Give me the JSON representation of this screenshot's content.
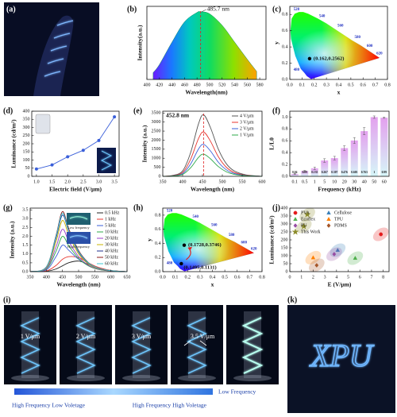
{
  "chart_data": [
    {
      "panel": "(b)",
      "type": "area",
      "x": [
        410,
        420,
        440,
        460,
        480,
        485.7,
        500,
        520,
        540,
        560,
        575
      ],
      "values": [
        0.1,
        0.22,
        0.55,
        0.85,
        0.99,
        1,
        0.97,
        0.8,
        0.55,
        0.3,
        0.12
      ],
      "xlim": [
        400,
        590
      ],
      "ylim": [
        0,
        1.08
      ],
      "xticks": [
        400,
        420,
        440,
        460,
        480,
        500,
        520,
        540,
        560,
        580
      ],
      "xlabel": "Wavelength(nm)",
      "ylabel": "Intensity(a.u.)",
      "peak": 485.7,
      "annotation": "485.7 nm"
    },
    {
      "panel": "(c)",
      "type": "cie",
      "xlim": [
        0,
        0.8
      ],
      "ylim": [
        0,
        0.9
      ],
      "xticks": [
        {
          "value": 0,
          "label": "0.0"
        },
        0.1,
        0.2,
        0.3,
        0.4,
        0.5,
        0.6,
        0.7,
        0.8
      ],
      "yticks": [
        {
          "value": 0,
          "label": "0.0"
        },
        0.2,
        0.4,
        0.6,
        0.8
      ],
      "xlabel": "x",
      "ylabel": "y",
      "locus_labels": [
        520,
        540,
        560,
        580,
        600,
        620,
        480
      ],
      "points": [
        {
          "x": 0.162,
          "y": 0.2562,
          "label": "(0.162,0.2562)"
        }
      ]
    },
    {
      "panel": "(d)",
      "type": "line",
      "markers": true,
      "x": [
        1,
        1.5,
        2,
        2.5,
        3,
        3.5
      ],
      "values": [
        45,
        70,
        120,
        160,
        220,
        365
      ],
      "color": "#3a5fd9",
      "xlim": [
        0.85,
        3.65
      ],
      "ylim": [
        0,
        400
      ],
      "xticks": [
        {
          "value": 1,
          "label": "1.0"
        },
        1.5,
        {
          "value": 2,
          "label": "2.0"
        },
        2.5,
        {
          "value": 3,
          "label": "3.0"
        },
        3.5
      ],
      "yticks": [
        0,
        50,
        100,
        150,
        200,
        250,
        300,
        350,
        400
      ],
      "xlabel": "Electric field (V/μm)",
      "ylabel": "Luminance (cd/m²)"
    },
    {
      "panel": "(e)",
      "type": "line",
      "legend": "upper right",
      "x": [
        350,
        375,
        400,
        420,
        440,
        452.8,
        470,
        490,
        510,
        530,
        560,
        600
      ],
      "series": [
        {
          "name": "4 V/μm",
          "color": "#555555",
          "values": [
            0,
            50,
            300,
            1300,
            2900,
            3400,
            2700,
            1500,
            700,
            300,
            80,
            0
          ]
        },
        {
          "name": "3 V/μm",
          "color": "#e8352e",
          "values": [
            0,
            36,
            216,
            936,
            2090,
            2450,
            1945,
            1080,
            505,
            216,
            58,
            0
          ]
        },
        {
          "name": "2 V/μm",
          "color": "#3a5fd9",
          "values": [
            0,
            26,
            156,
            676,
            1510,
            1770,
            1405,
            780,
            365,
            156,
            42,
            0
          ]
        },
        {
          "name": "1 V/μm",
          "color": "#2ea84a",
          "values": [
            0,
            18,
            108,
            468,
            1045,
            1225,
            972,
            540,
            252,
            108,
            29,
            0
          ]
        }
      ],
      "xlim": [
        350,
        600
      ],
      "ylim": [
        0,
        3600
      ],
      "xticks": [
        350,
        400,
        450,
        500,
        550,
        600
      ],
      "yticks": [
        0,
        500,
        1000,
        1500,
        2000,
        2500,
        3000,
        3500
      ],
      "xlabel": "Wavelength (nm)",
      "ylabel": "Intensity (a.u.)",
      "peak": 452.8,
      "annotation": "452.8 nm"
    },
    {
      "panel": "(f)",
      "type": "bar",
      "categories": [
        "0.1",
        "0.5",
        "1",
        "5",
        "10",
        "20",
        "30",
        "40",
        "50",
        "60"
      ],
      "values": [
        0.04,
        0.09,
        0.135,
        0.267,
        0.307,
        0.476,
        0.605,
        0.763,
        1,
        0.99
      ],
      "errors": [
        0.01,
        0.01,
        0.02,
        0.03,
        0.03,
        0.04,
        0.05,
        0.06,
        0.02,
        0.01
      ],
      "colors": [
        "#e3a0ee",
        "#d6f6f8"
      ],
      "ylim": [
        0,
        1.1
      ],
      "yticks": [
        {
          "value": 0,
          "label": "0.0"
        },
        0.2,
        0.4,
        0.6,
        0.8,
        {
          "value": 1,
          "label": "1.0"
        }
      ],
      "xlabel": "Frequency (kHz)",
      "ylabel": "L/L0"
    },
    {
      "panel": "(g)",
      "type": "line",
      "legend": "upper right",
      "x": [
        350,
        400,
        430,
        450,
        470,
        500,
        530,
        560,
        600,
        650
      ],
      "series": [
        {
          "name": "0.5 kHz",
          "color": "#222222",
          "values": [
            0,
            0.02,
            0.15,
            0.33,
            0.51,
            0.6,
            0.42,
            0.21,
            0.06,
            0
          ]
        },
        {
          "name": "1 kHz",
          "color": "#e8352e",
          "values": [
            0,
            0.04,
            0.35,
            0.7,
            0.85,
            0.8,
            0.5,
            0.25,
            0.07,
            0
          ]
        },
        {
          "name": "5 kHz",
          "color": "#3a5fd9",
          "values": [
            0,
            0.1,
            0.85,
            1.5,
            1.2,
            0.7,
            0.35,
            0.14,
            0.04,
            0
          ]
        },
        {
          "name": "10 kHz",
          "color": "#2ea84a",
          "values": [
            0,
            0.15,
            1.15,
            2,
            1.45,
            0.75,
            0.33,
            0.13,
            0.04,
            0
          ]
        },
        {
          "name": "20 kHz",
          "color": "#9b3fc7",
          "values": [
            0,
            0.18,
            1.4,
            2.4,
            1.7,
            0.85,
            0.37,
            0.15,
            0.04,
            0
          ]
        },
        {
          "name": "30 kHz",
          "color": "#c9b400",
          "values": [
            0,
            0.22,
            1.7,
            2.9,
            2.05,
            1,
            0.44,
            0.17,
            0.05,
            0
          ]
        },
        {
          "name": "40 kHz",
          "color": "#1f2f8f",
          "values": [
            0,
            0.25,
            1.9,
            3.2,
            2.25,
            1.1,
            0.48,
            0.19,
            0.05,
            0
          ]
        },
        {
          "name": "50 kHz",
          "color": "#8b1a1a",
          "values": [
            0,
            0.27,
            2.05,
            3.4,
            2.4,
            1.2,
            0.52,
            0.2,
            0.06,
            0
          ]
        },
        {
          "name": "60 kHz",
          "color": "#3fc9d6",
          "values": [
            0,
            0.26,
            2,
            3.3,
            2.3,
            1.15,
            0.5,
            0.2,
            0.06,
            0
          ]
        }
      ],
      "xlim": [
        350,
        650
      ],
      "ylim": [
        0,
        3.6
      ],
      "xticks": [
        350,
        400,
        450,
        500,
        550,
        600,
        650
      ],
      "yticks": [
        {
          "value": 0,
          "label": "0.0"
        },
        0.5,
        {
          "value": 1,
          "label": "1.0"
        },
        1.5,
        {
          "value": 2,
          "label": "2.0"
        },
        2.5,
        {
          "value": 3,
          "label": "3.0"
        },
        3.5
      ],
      "xlabel": "Wavelength (nm)",
      "ylabel": "Intensity (a.u.)",
      "inset_labels": [
        "Low frequency",
        "High frequency"
      ]
    },
    {
      "panel": "(h)",
      "type": "cie",
      "xlim": [
        0,
        0.8
      ],
      "ylim": [
        0,
        0.9
      ],
      "xticks": [
        {
          "value": 0,
          "label": "0.0"
        },
        0.1,
        0.2,
        0.3,
        0.4,
        0.5,
        0.6,
        0.7,
        0.8
      ],
      "yticks": [
        {
          "value": 0,
          "label": "0.0"
        },
        0.2,
        0.4,
        0.6,
        0.8
      ],
      "xlabel": "x",
      "ylabel": "y",
      "locus_labels": [
        520,
        540,
        560,
        580,
        600,
        620,
        480
      ],
      "points": [
        {
          "x": 0.1728,
          "y": 0.3746,
          "label": "(0.1728,0.3746)"
        },
        {
          "x": 0.1495,
          "y": 0.1131,
          "label": "(0.1495,0.1131)"
        }
      ]
    },
    {
      "panel": "(j)",
      "type": "scatter",
      "legend": "upper left",
      "series": [
        {
          "name": "PVA",
          "color": "#e41a1c",
          "marker": "circle",
          "x": [
            7.8
          ],
          "values": [
            235
          ]
        },
        {
          "name": "Cellulose",
          "color": "#377eb8",
          "marker": "triangle",
          "x": [
            4.1
          ],
          "values": [
            135
          ]
        },
        {
          "name": "Ecoflex",
          "color": "#4daf4a",
          "marker": "triangle",
          "x": [
            5.6
          ],
          "values": [
            85
          ]
        },
        {
          "name": "TPU",
          "color": "#ff7f00",
          "marker": "triangle",
          "x": [
            2
          ],
          "values": [
            88
          ]
        },
        {
          "name": "PU",
          "color": "#984ea3",
          "marker": "diamond",
          "x": [
            3.8
          ],
          "values": [
            110
          ]
        },
        {
          "name": "PDMS",
          "color": "#a65628",
          "marker": "diamond",
          "x": [
            2.3
          ],
          "values": [
            40
          ]
        },
        {
          "name": "This Work",
          "color": "#8c8c2a",
          "marker": "star",
          "x": [
            1.2,
            1.5
          ],
          "values": [
            285,
            360
          ]
        }
      ],
      "xlim": [
        0,
        8.5
      ],
      "ylim": [
        0,
        400
      ],
      "xticks": [
        0,
        1,
        2,
        3,
        4,
        5,
        6,
        7,
        8
      ],
      "yticks": [
        0,
        50,
        100,
        150,
        200,
        250,
        300,
        350,
        400
      ],
      "xlabel": "E (V/μm)",
      "ylabel": "Luminance (cd/m²)"
    }
  ],
  "photos": [
    {
      "panel": "(a)"
    },
    {
      "panel": "(i)",
      "captions": [
        "1 V/μm",
        "2 V/μm",
        "3 V/μm",
        "3.5 V/μm"
      ],
      "bar_labels": [
        "High Frequency Low Voletage",
        "High Frequency High Voletage",
        "Low Frequency"
      ]
    },
    {
      "panel": "(k)",
      "text": "XPU"
    }
  ]
}
